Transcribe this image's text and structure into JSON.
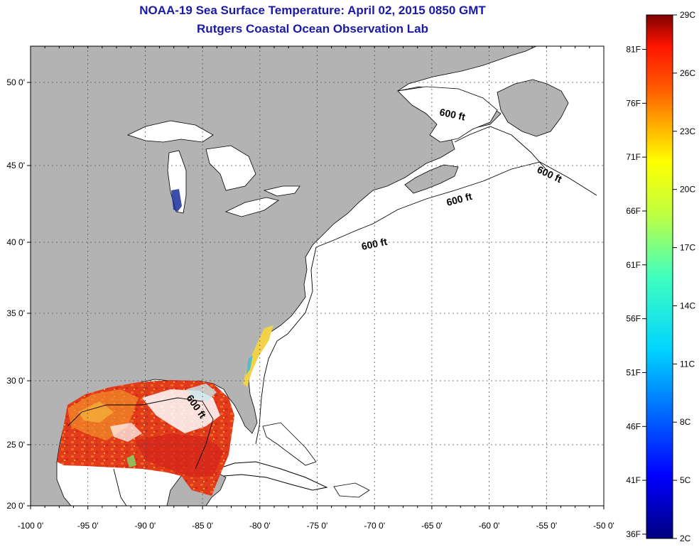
{
  "title": "NOAA-19 Sea Surface Temperature:  April 02, 2015 0850 GMT",
  "subtitle": "Rutgers Coastal Ocean Observation Lab",
  "lat_labels": [
    "50 0'",
    "45 0'",
    "40 0'",
    "35 0'",
    "30 0'",
    "25 0'",
    "20 0'"
  ],
  "lon_labels": [
    "-100 0'",
    "-95 0'",
    "-90 0'",
    "-85 0'",
    "-80 0'",
    "-75 0'",
    "-70 0'",
    "-65 0'",
    "-60 0'",
    "-55 0'",
    "-50 0'"
  ],
  "contour_labels": [
    "600 ft",
    "600 ft",
    "600 ft",
    "600 ft",
    "600 ft"
  ],
  "colorbar": {
    "celsius": [
      "29C",
      "26C",
      "23C",
      "20C",
      "17C",
      "14C",
      "11C",
      "8C",
      "5C",
      "2C"
    ],
    "fahrenheit": [
      "81F",
      "76F",
      "71F",
      "66F",
      "61F",
      "56F",
      "51F",
      "46F",
      "41F",
      "36F"
    ]
  },
  "colors": {
    "land": "#b3b3b3",
    "ocean": "#ffffff",
    "title": "#1a1aa6",
    "sst_warm": "#e8301a",
    "sst_mid": "#f07a20"
  }
}
